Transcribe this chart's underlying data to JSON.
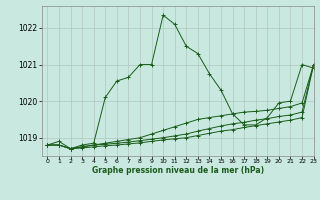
{
  "title": "Graphe pression niveau de la mer (hPa)",
  "background_color": "#c8e8e0",
  "grid_color": "#b0c8c0",
  "line_color": "#1a5c1a",
  "xlim": [
    -0.5,
    23
  ],
  "ylim": [
    1018.5,
    1022.6
  ],
  "xticks": [
    0,
    1,
    2,
    3,
    4,
    5,
    6,
    7,
    8,
    9,
    10,
    11,
    12,
    13,
    14,
    15,
    16,
    17,
    18,
    19,
    20,
    21,
    22,
    23
  ],
  "yticks": [
    1019,
    1020,
    1021,
    1022
  ],
  "series": [
    [
      1018.8,
      1018.9,
      1018.7,
      1018.8,
      1018.85,
      1020.1,
      1020.55,
      1020.65,
      1021.0,
      1021.0,
      1022.35,
      1022.1,
      1021.5,
      1021.3,
      1020.75,
      1020.3,
      1019.65,
      1019.35,
      1019.35,
      1019.55,
      1019.95,
      1020.0,
      1021.0,
      1020.9
    ],
    [
      1018.8,
      1018.8,
      1018.7,
      1018.75,
      1018.8,
      1018.85,
      1018.9,
      1018.95,
      1019.0,
      1019.1,
      1019.2,
      1019.3,
      1019.4,
      1019.5,
      1019.55,
      1019.6,
      1019.65,
      1019.7,
      1019.72,
      1019.75,
      1019.8,
      1019.85,
      1019.95,
      1021.0
    ],
    [
      1018.8,
      1018.8,
      1018.7,
      1018.75,
      1018.8,
      1018.82,
      1018.85,
      1018.88,
      1018.92,
      1018.96,
      1019.0,
      1019.05,
      1019.1,
      1019.18,
      1019.25,
      1019.32,
      1019.38,
      1019.42,
      1019.48,
      1019.52,
      1019.58,
      1019.62,
      1019.7,
      1021.0
    ],
    [
      1018.8,
      1018.8,
      1018.7,
      1018.72,
      1018.75,
      1018.78,
      1018.8,
      1018.83,
      1018.86,
      1018.9,
      1018.94,
      1018.97,
      1019.0,
      1019.06,
      1019.12,
      1019.18,
      1019.22,
      1019.28,
      1019.33,
      1019.38,
      1019.43,
      1019.48,
      1019.55,
      1021.0
    ]
  ]
}
